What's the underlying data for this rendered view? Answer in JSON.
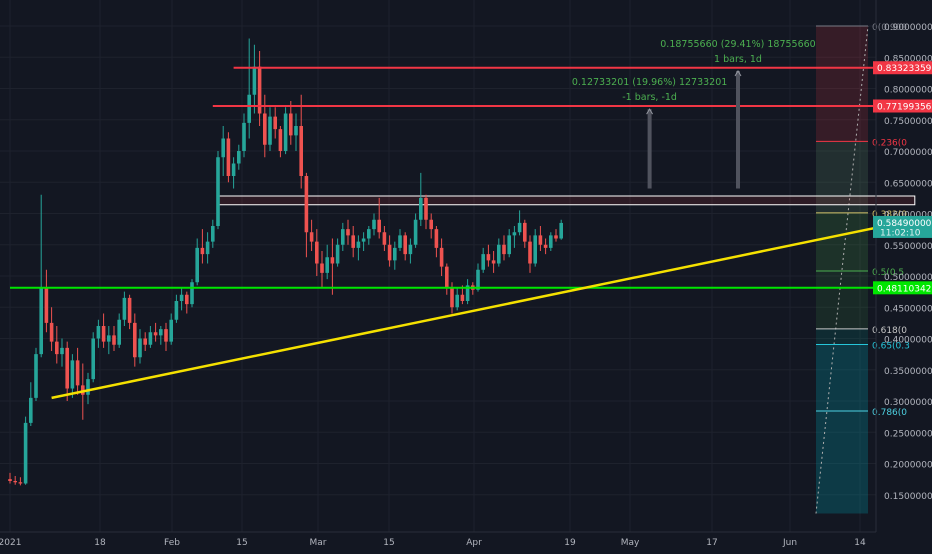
{
  "colors": {
    "background": "#131722",
    "grid": "#1e222d",
    "up": "#26a69a",
    "down": "#ef5350",
    "axis_text": "#b2b5be",
    "resistance": "#f23645",
    "support": "#00e600",
    "trendline": "#f5e100",
    "measure_text": "#4caf50"
  },
  "chart_data": {
    "type": "candlestick",
    "symbol_period": "1D",
    "x_axis": {
      "ticks": [
        "2021",
        "18",
        "Feb",
        "15",
        "Mar",
        "15",
        "Apr",
        "19",
        "May",
        "17",
        "Jun",
        "14"
      ]
    },
    "y_axis": {
      "range": [
        0.14,
        0.91
      ],
      "ticks": [
        "0.90000000",
        "0.85000000",
        "0.80000000",
        "0.75000000",
        "0.70000000",
        "0.65000000",
        "0.60000000",
        "0.55000000",
        "0.50000000",
        "0.45000000",
        "0.40000000",
        "0.35000000",
        "0.30000000",
        "0.25000000",
        "0.20000000",
        "0.15000000"
      ]
    },
    "price_labels": [
      {
        "value": 0.83323359,
        "text": "0.83323359",
        "kind": "resistance"
      },
      {
        "value": 0.77199356,
        "text": "0.77199356",
        "kind": "resistance"
      },
      {
        "value": 0.5849,
        "text": "0.58490000",
        "sub": "11:02:10",
        "kind": "last"
      },
      {
        "value": 0.48110342,
        "text": "0.48110342",
        "kind": "support"
      }
    ],
    "horizontal_lines": [
      {
        "value": 0.83323359,
        "start_date": "2021-02-09",
        "kind": "resistance"
      },
      {
        "value": 0.77199356,
        "start_date": "2021-02-05",
        "kind": "resistance"
      },
      {
        "value": 0.48110342,
        "start_date": "2020-12-28",
        "kind": "support"
      }
    ],
    "trendline": {
      "from": [
        "2021-01-05",
        0.305
      ],
      "to": [
        "2021-06-20",
        0.59
      ]
    },
    "range_box": {
      "from_date": "2021-02-06",
      "to_date": "2021-06-20",
      "top": 0.628,
      "bottom": 0.614
    },
    "measure_annotations": [
      {
        "line1": "0.18755660 (29.41%) 18755660",
        "line2": "1 bars, 1d",
        "date": "2021-05-17",
        "from": 0.64,
        "to": 0.828
      },
      {
        "line1": "0.12733201 (19.96%) 12733201",
        "line2": "-1 bars, -1d",
        "date": "2021-04-30",
        "from": 0.64,
        "to": 0.767
      }
    ],
    "fib_levels": [
      {
        "ratio": "0(0.900",
        "value": 0.9,
        "color": "#787b86"
      },
      {
        "ratio": "0.236(0",
        "value": 0.7155,
        "color": "#f23645"
      },
      {
        "ratio": "0.382(0",
        "value": 0.601,
        "color": "#d4c46a"
      },
      {
        "ratio": "0.5(0.5",
        "value": 0.508,
        "color": "#4caf50"
      },
      {
        "ratio": "0.618(0",
        "value": 0.4155,
        "color": "#c8c8c8"
      },
      {
        "ratio": "0.65(0.3",
        "value": 0.3905,
        "color": "#26c6da"
      },
      {
        "ratio": "0.786(0",
        "value": 0.284,
        "color": "#4dd0e1"
      }
    ],
    "fib_zone": {
      "from_date": "2021-06-01",
      "to_date": "2021-06-11",
      "top": 0.9,
      "bottom": 0.12
    },
    "candles": [
      {
        "d": "2020-12-28",
        "o": 0.175,
        "h": 0.185,
        "l": 0.168,
        "c": 0.172
      },
      {
        "d": "2020-12-29",
        "o": 0.172,
        "h": 0.18,
        "l": 0.166,
        "c": 0.17
      },
      {
        "d": "2020-12-30",
        "o": 0.17,
        "h": 0.178,
        "l": 0.165,
        "c": 0.168
      },
      {
        "d": "2020-12-31",
        "o": 0.168,
        "h": 0.275,
        "l": 0.166,
        "c": 0.265
      },
      {
        "d": "2021-01-01",
        "o": 0.265,
        "h": 0.33,
        "l": 0.26,
        "c": 0.305
      },
      {
        "d": "2021-01-02",
        "o": 0.305,
        "h": 0.385,
        "l": 0.3,
        "c": 0.375
      },
      {
        "d": "2021-01-03",
        "o": 0.375,
        "h": 0.63,
        "l": 0.37,
        "c": 0.48
      },
      {
        "d": "2021-01-04",
        "o": 0.48,
        "h": 0.51,
        "l": 0.41,
        "c": 0.425
      },
      {
        "d": "2021-01-05",
        "o": 0.425,
        "h": 0.45,
        "l": 0.38,
        "c": 0.395
      },
      {
        "d": "2021-01-06",
        "o": 0.395,
        "h": 0.42,
        "l": 0.36,
        "c": 0.375
      },
      {
        "d": "2021-01-07",
        "o": 0.375,
        "h": 0.4,
        "l": 0.355,
        "c": 0.385
      },
      {
        "d": "2021-01-08",
        "o": 0.385,
        "h": 0.395,
        "l": 0.3,
        "c": 0.32
      },
      {
        "d": "2021-01-09",
        "o": 0.32,
        "h": 0.375,
        "l": 0.305,
        "c": 0.365
      },
      {
        "d": "2021-01-10",
        "o": 0.365,
        "h": 0.385,
        "l": 0.31,
        "c": 0.325
      },
      {
        "d": "2021-01-11",
        "o": 0.325,
        "h": 0.36,
        "l": 0.27,
        "c": 0.31
      },
      {
        "d": "2021-01-12",
        "o": 0.31,
        "h": 0.345,
        "l": 0.295,
        "c": 0.335
      },
      {
        "d": "2021-01-13",
        "o": 0.335,
        "h": 0.41,
        "l": 0.33,
        "c": 0.4
      },
      {
        "d": "2021-01-14",
        "o": 0.4,
        "h": 0.43,
        "l": 0.385,
        "c": 0.42
      },
      {
        "d": "2021-01-15",
        "o": 0.42,
        "h": 0.44,
        "l": 0.385,
        "c": 0.395
      },
      {
        "d": "2021-01-16",
        "o": 0.395,
        "h": 0.42,
        "l": 0.375,
        "c": 0.405
      },
      {
        "d": "2021-01-17",
        "o": 0.405,
        "h": 0.42,
        "l": 0.38,
        "c": 0.39
      },
      {
        "d": "2021-01-18",
        "o": 0.39,
        "h": 0.44,
        "l": 0.385,
        "c": 0.43
      },
      {
        "d": "2021-01-19",
        "o": 0.43,
        "h": 0.475,
        "l": 0.42,
        "c": 0.465
      },
      {
        "d": "2021-01-20",
        "o": 0.465,
        "h": 0.47,
        "l": 0.415,
        "c": 0.425
      },
      {
        "d": "2021-01-21",
        "o": 0.425,
        "h": 0.44,
        "l": 0.355,
        "c": 0.37
      },
      {
        "d": "2021-01-22",
        "o": 0.37,
        "h": 0.415,
        "l": 0.36,
        "c": 0.4
      },
      {
        "d": "2021-01-23",
        "o": 0.4,
        "h": 0.41,
        "l": 0.38,
        "c": 0.39
      },
      {
        "d": "2021-01-24",
        "o": 0.39,
        "h": 0.42,
        "l": 0.385,
        "c": 0.41
      },
      {
        "d": "2021-01-25",
        "o": 0.41,
        "h": 0.425,
        "l": 0.395,
        "c": 0.405
      },
      {
        "d": "2021-01-26",
        "o": 0.405,
        "h": 0.42,
        "l": 0.39,
        "c": 0.415
      },
      {
        "d": "2021-01-27",
        "o": 0.415,
        "h": 0.425,
        "l": 0.38,
        "c": 0.395
      },
      {
        "d": "2021-01-28",
        "o": 0.395,
        "h": 0.44,
        "l": 0.39,
        "c": 0.43
      },
      {
        "d": "2021-01-29",
        "o": 0.43,
        "h": 0.47,
        "l": 0.425,
        "c": 0.46
      },
      {
        "d": "2021-01-30",
        "o": 0.46,
        "h": 0.48,
        "l": 0.445,
        "c": 0.47
      },
      {
        "d": "2021-01-31",
        "o": 0.47,
        "h": 0.475,
        "l": 0.44,
        "c": 0.455
      },
      {
        "d": "2021-02-01",
        "o": 0.455,
        "h": 0.495,
        "l": 0.45,
        "c": 0.49
      },
      {
        "d": "2021-02-02",
        "o": 0.49,
        "h": 0.56,
        "l": 0.485,
        "c": 0.545
      },
      {
        "d": "2021-02-03",
        "o": 0.545,
        "h": 0.575,
        "l": 0.52,
        "c": 0.535
      },
      {
        "d": "2021-02-04",
        "o": 0.535,
        "h": 0.57,
        "l": 0.52,
        "c": 0.555
      },
      {
        "d": "2021-02-05",
        "o": 0.555,
        "h": 0.59,
        "l": 0.545,
        "c": 0.58
      },
      {
        "d": "2021-02-06",
        "o": 0.58,
        "h": 0.7,
        "l": 0.575,
        "c": 0.69
      },
      {
        "d": "2021-02-07",
        "o": 0.69,
        "h": 0.74,
        "l": 0.66,
        "c": 0.72
      },
      {
        "d": "2021-02-08",
        "o": 0.72,
        "h": 0.73,
        "l": 0.65,
        "c": 0.66
      },
      {
        "d": "2021-02-09",
        "o": 0.66,
        "h": 0.69,
        "l": 0.64,
        "c": 0.68
      },
      {
        "d": "2021-02-10",
        "o": 0.68,
        "h": 0.71,
        "l": 0.67,
        "c": 0.7
      },
      {
        "d": "2021-02-11",
        "o": 0.7,
        "h": 0.76,
        "l": 0.69,
        "c": 0.745
      },
      {
        "d": "2021-02-12",
        "o": 0.745,
        "h": 0.88,
        "l": 0.72,
        "c": 0.79
      },
      {
        "d": "2021-02-13",
        "o": 0.79,
        "h": 0.87,
        "l": 0.76,
        "c": 0.835
      },
      {
        "d": "2021-02-14",
        "o": 0.835,
        "h": 0.86,
        "l": 0.74,
        "c": 0.76
      },
      {
        "d": "2021-02-15",
        "o": 0.76,
        "h": 0.79,
        "l": 0.69,
        "c": 0.71
      },
      {
        "d": "2021-02-16",
        "o": 0.71,
        "h": 0.77,
        "l": 0.7,
        "c": 0.755
      },
      {
        "d": "2021-02-17",
        "o": 0.755,
        "h": 0.77,
        "l": 0.72,
        "c": 0.735
      },
      {
        "d": "2021-02-18",
        "o": 0.735,
        "h": 0.74,
        "l": 0.69,
        "c": 0.7
      },
      {
        "d": "2021-02-19",
        "o": 0.7,
        "h": 0.77,
        "l": 0.695,
        "c": 0.76
      },
      {
        "d": "2021-02-20",
        "o": 0.76,
        "h": 0.78,
        "l": 0.71,
        "c": 0.725
      },
      {
        "d": "2021-02-21",
        "o": 0.725,
        "h": 0.76,
        "l": 0.7,
        "c": 0.74
      },
      {
        "d": "2021-02-22",
        "o": 0.74,
        "h": 0.79,
        "l": 0.64,
        "c": 0.66
      },
      {
        "d": "2021-02-23",
        "o": 0.66,
        "h": 0.665,
        "l": 0.53,
        "c": 0.57
      },
      {
        "d": "2021-02-24",
        "o": 0.57,
        "h": 0.59,
        "l": 0.54,
        "c": 0.555
      },
      {
        "d": "2021-02-25",
        "o": 0.555,
        "h": 0.575,
        "l": 0.5,
        "c": 0.52
      },
      {
        "d": "2021-02-26",
        "o": 0.52,
        "h": 0.54,
        "l": 0.48,
        "c": 0.505
      },
      {
        "d": "2021-02-27",
        "o": 0.505,
        "h": 0.55,
        "l": 0.495,
        "c": 0.53
      },
      {
        "d": "2021-02-28",
        "o": 0.53,
        "h": 0.56,
        "l": 0.47,
        "c": 0.52
      },
      {
        "d": "2021-03-01",
        "o": 0.52,
        "h": 0.56,
        "l": 0.515,
        "c": 0.55
      },
      {
        "d": "2021-03-02",
        "o": 0.55,
        "h": 0.585,
        "l": 0.54,
        "c": 0.575
      },
      {
        "d": "2021-03-03",
        "o": 0.575,
        "h": 0.59,
        "l": 0.55,
        "c": 0.565
      },
      {
        "d": "2021-03-04",
        "o": 0.565,
        "h": 0.58,
        "l": 0.53,
        "c": 0.545
      },
      {
        "d": "2021-03-05",
        "o": 0.545,
        "h": 0.565,
        "l": 0.525,
        "c": 0.555
      },
      {
        "d": "2021-03-06",
        "o": 0.555,
        "h": 0.57,
        "l": 0.54,
        "c": 0.56
      },
      {
        "d": "2021-03-07",
        "o": 0.56,
        "h": 0.58,
        "l": 0.55,
        "c": 0.575
      },
      {
        "d": "2021-03-08",
        "o": 0.575,
        "h": 0.6,
        "l": 0.565,
        "c": 0.59
      },
      {
        "d": "2021-03-09",
        "o": 0.59,
        "h": 0.625,
        "l": 0.56,
        "c": 0.57
      },
      {
        "d": "2021-03-10",
        "o": 0.57,
        "h": 0.58,
        "l": 0.54,
        "c": 0.55
      },
      {
        "d": "2021-03-11",
        "o": 0.55,
        "h": 0.565,
        "l": 0.515,
        "c": 0.525
      },
      {
        "d": "2021-03-12",
        "o": 0.525,
        "h": 0.555,
        "l": 0.51,
        "c": 0.545
      },
      {
        "d": "2021-03-13",
        "o": 0.545,
        "h": 0.575,
        "l": 0.54,
        "c": 0.565
      },
      {
        "d": "2021-03-14",
        "o": 0.565,
        "h": 0.57,
        "l": 0.525,
        "c": 0.535
      },
      {
        "d": "2021-03-15",
        "o": 0.535,
        "h": 0.56,
        "l": 0.52,
        "c": 0.55
      },
      {
        "d": "2021-03-16",
        "o": 0.55,
        "h": 0.6,
        "l": 0.545,
        "c": 0.59
      },
      {
        "d": "2021-03-17",
        "o": 0.59,
        "h": 0.665,
        "l": 0.58,
        "c": 0.625
      },
      {
        "d": "2021-03-18",
        "o": 0.625,
        "h": 0.63,
        "l": 0.575,
        "c": 0.59
      },
      {
        "d": "2021-03-19",
        "o": 0.59,
        "h": 0.6,
        "l": 0.56,
        "c": 0.575
      },
      {
        "d": "2021-03-20",
        "o": 0.575,
        "h": 0.58,
        "l": 0.53,
        "c": 0.545
      },
      {
        "d": "2021-03-21",
        "o": 0.545,
        "h": 0.56,
        "l": 0.5,
        "c": 0.515
      },
      {
        "d": "2021-03-22",
        "o": 0.515,
        "h": 0.52,
        "l": 0.47,
        "c": 0.48
      },
      {
        "d": "2021-03-23",
        "o": 0.48,
        "h": 0.49,
        "l": 0.44,
        "c": 0.45
      },
      {
        "d": "2021-03-24",
        "o": 0.45,
        "h": 0.48,
        "l": 0.445,
        "c": 0.47
      },
      {
        "d": "2021-03-25",
        "o": 0.47,
        "h": 0.485,
        "l": 0.455,
        "c": 0.46
      },
      {
        "d": "2021-03-26",
        "o": 0.46,
        "h": 0.495,
        "l": 0.455,
        "c": 0.485
      },
      {
        "d": "2021-03-27",
        "o": 0.485,
        "h": 0.49,
        "l": 0.47,
        "c": 0.478
      },
      {
        "d": "2021-03-28",
        "o": 0.478,
        "h": 0.52,
        "l": 0.475,
        "c": 0.51
      },
      {
        "d": "2021-03-29",
        "o": 0.51,
        "h": 0.545,
        "l": 0.505,
        "c": 0.535
      },
      {
        "d": "2021-03-30",
        "o": 0.535,
        "h": 0.55,
        "l": 0.515,
        "c": 0.525
      },
      {
        "d": "2021-03-31",
        "o": 0.525,
        "h": 0.54,
        "l": 0.505,
        "c": 0.52
      },
      {
        "d": "2021-04-01",
        "o": 0.52,
        "h": 0.56,
        "l": 0.515,
        "c": 0.55
      },
      {
        "d": "2021-04-02",
        "o": 0.55,
        "h": 0.565,
        "l": 0.525,
        "c": 0.535
      },
      {
        "d": "2021-04-03",
        "o": 0.535,
        "h": 0.575,
        "l": 0.53,
        "c": 0.565
      },
      {
        "d": "2021-04-04",
        "o": 0.565,
        "h": 0.58,
        "l": 0.545,
        "c": 0.57
      },
      {
        "d": "2021-04-05",
        "o": 0.57,
        "h": 0.605,
        "l": 0.565,
        "c": 0.585
      },
      {
        "d": "2021-04-06",
        "o": 0.585,
        "h": 0.59,
        "l": 0.545,
        "c": 0.555
      },
      {
        "d": "2021-04-07",
        "o": 0.555,
        "h": 0.565,
        "l": 0.505,
        "c": 0.52
      },
      {
        "d": "2021-04-08",
        "o": 0.52,
        "h": 0.575,
        "l": 0.515,
        "c": 0.565
      },
      {
        "d": "2021-04-09",
        "o": 0.565,
        "h": 0.58,
        "l": 0.54,
        "c": 0.55
      },
      {
        "d": "2021-04-10",
        "o": 0.55,
        "h": 0.56,
        "l": 0.535,
        "c": 0.545
      },
      {
        "d": "2021-04-11",
        "o": 0.545,
        "h": 0.57,
        "l": 0.54,
        "c": 0.565
      },
      {
        "d": "2021-04-12",
        "o": 0.565,
        "h": 0.575,
        "l": 0.555,
        "c": 0.56
      },
      {
        "d": "2021-04-13",
        "o": 0.56,
        "h": 0.59,
        "l": 0.558,
        "c": 0.5849
      }
    ]
  }
}
